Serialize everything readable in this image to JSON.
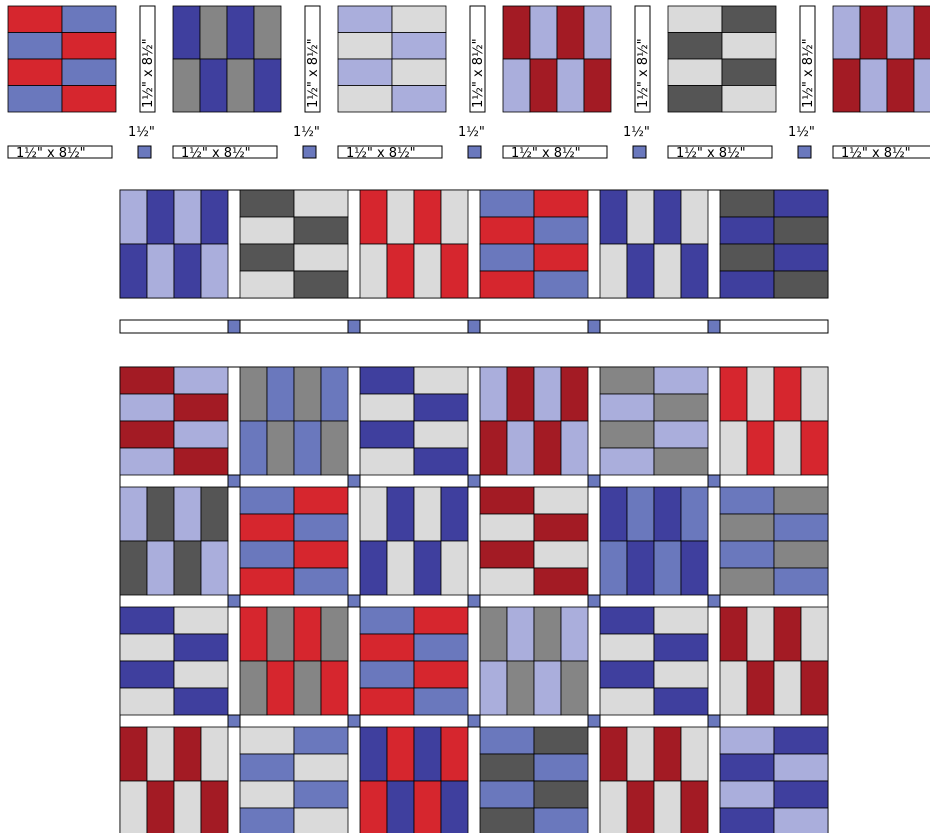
{
  "colors": {
    "red": "#d6262e",
    "dark_red": "#a31b24",
    "navy": "#3f3f9e",
    "periwinkle": "#6a78bd",
    "lavender": "#aaaedc",
    "light_gray": "#dadada",
    "mid_gray": "#858585",
    "dark_gray": "#555555",
    "sashing": "#ffffff",
    "cornerstone": "#6a78bd",
    "outline": "#000000"
  },
  "labels": {
    "strip_vertical": "1½\" x 8½\"",
    "strip_horizontal": "1½\" x 8½\"",
    "cornerstone_size": "1½\""
  },
  "cutting_blocks": [
    {
      "name": "red-periwinkle-bars",
      "orientation": "horizontal",
      "colors": [
        "red",
        "periwinkle"
      ]
    },
    {
      "name": "navy-gray-bars",
      "orientation": "vertical",
      "colors": [
        "navy",
        "mid_gray"
      ]
    },
    {
      "name": "lavender-lightgray-bars",
      "orientation": "horizontal",
      "colors": [
        "lavender",
        "light_gray"
      ]
    },
    {
      "name": "darkred-lavender-bars",
      "orientation": "vertical",
      "colors": [
        "dark_red",
        "lavender"
      ]
    },
    {
      "name": "lightgray-darkgray-bars",
      "orientation": "horizontal",
      "colors": [
        "light_gray",
        "dark_gray"
      ]
    },
    {
      "name": "lavender-red-bars",
      "orientation": "vertical",
      "colors": [
        "lavender",
        "dark_red"
      ]
    }
  ],
  "row_one_blocks": [
    {
      "name": "lavender-navy",
      "orientation": "vertical",
      "colors": [
        "lavender",
        "navy"
      ]
    },
    {
      "name": "darkgray-white",
      "orientation": "horizontal",
      "colors": [
        "dark_gray",
        "light_gray"
      ]
    },
    {
      "name": "red-lightgray",
      "orientation": "vertical",
      "colors": [
        "red",
        "light_gray"
      ]
    },
    {
      "name": "periwinkle-red",
      "orientation": "horizontal",
      "colors": [
        "periwinkle",
        "red"
      ]
    },
    {
      "name": "navy-white",
      "orientation": "vertical",
      "colors": [
        "navy",
        "light_gray"
      ]
    },
    {
      "name": "darkgray-navy",
      "orientation": "horizontal",
      "colors": [
        "dark_gray",
        "navy"
      ]
    }
  ],
  "quilt_rows": [
    [
      {
        "name": "darkred-lavender",
        "orientation": "horizontal",
        "colors": [
          "dark_red",
          "lavender"
        ]
      },
      {
        "name": "gray-periwinkle",
        "orientation": "vertical",
        "colors": [
          "mid_gray",
          "periwinkle"
        ]
      },
      {
        "name": "navy-lightgray",
        "orientation": "horizontal",
        "colors": [
          "navy",
          "light_gray"
        ]
      },
      {
        "name": "lavender-red",
        "orientation": "vertical",
        "colors": [
          "lavender",
          "dark_red"
        ]
      },
      {
        "name": "gray-lavender",
        "orientation": "horizontal",
        "colors": [
          "mid_gray",
          "lavender"
        ]
      },
      {
        "name": "red-lightgray",
        "orientation": "vertical",
        "colors": [
          "red",
          "light_gray"
        ]
      }
    ],
    [
      {
        "name": "lavender-darkgray",
        "orientation": "vertical",
        "colors": [
          "lavender",
          "dark_gray"
        ]
      },
      {
        "name": "periwinkle-red",
        "orientation": "horizontal",
        "colors": [
          "periwinkle",
          "red"
        ]
      },
      {
        "name": "lightgray-navy",
        "orientation": "vertical",
        "colors": [
          "light_gray",
          "navy"
        ]
      },
      {
        "name": "darkred-lightgray",
        "orientation": "horizontal",
        "colors": [
          "dark_red",
          "light_gray"
        ]
      },
      {
        "name": "navy-periwinkle",
        "orientation": "vertical",
        "colors": [
          "navy",
          "periwinkle"
        ]
      },
      {
        "name": "periwinkle-gray",
        "orientation": "horizontal",
        "colors": [
          "periwinkle",
          "mid_gray"
        ]
      }
    ],
    [
      {
        "name": "navy-white",
        "orientation": "horizontal",
        "colors": [
          "navy",
          "light_gray"
        ]
      },
      {
        "name": "red-gray",
        "orientation": "vertical",
        "colors": [
          "red",
          "mid_gray"
        ]
      },
      {
        "name": "periwinkle-red",
        "orientation": "horizontal",
        "colors": [
          "periwinkle",
          "red"
        ]
      },
      {
        "name": "gray-lavender",
        "orientation": "vertical",
        "colors": [
          "mid_gray",
          "lavender"
        ]
      },
      {
        "name": "navy-silver",
        "orientation": "horizontal",
        "colors": [
          "navy",
          "light_gray"
        ]
      },
      {
        "name": "darkred-lightgray",
        "orientation": "vertical",
        "colors": [
          "dark_red",
          "light_gray"
        ]
      }
    ],
    [
      {
        "name": "darkred-lightgray",
        "orientation": "vertical",
        "colors": [
          "dark_red",
          "light_gray"
        ]
      },
      {
        "name": "lightgray-periwinkle",
        "orientation": "horizontal",
        "colors": [
          "light_gray",
          "periwinkle"
        ]
      },
      {
        "name": "navy-red",
        "orientation": "vertical",
        "colors": [
          "navy",
          "red"
        ]
      },
      {
        "name": "periwinkle-darkgray",
        "orientation": "horizontal",
        "colors": [
          "periwinkle",
          "dark_gray"
        ]
      },
      {
        "name": "darkred-lightgray-2",
        "orientation": "vertical",
        "colors": [
          "dark_red",
          "light_gray"
        ]
      },
      {
        "name": "lavender-navy",
        "orientation": "horizontal",
        "colors": [
          "lavender",
          "navy"
        ]
      }
    ]
  ]
}
